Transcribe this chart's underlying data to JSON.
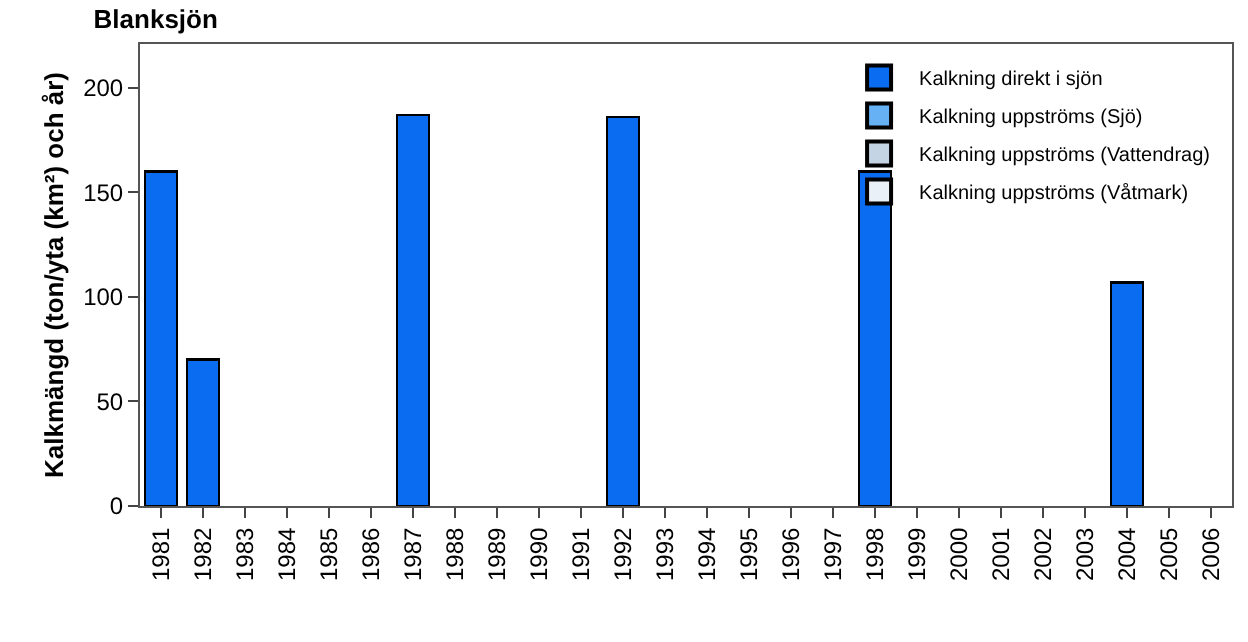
{
  "chart_data": {
    "type": "bar",
    "title": "Blanksjön",
    "ylabel": "Kalkmängd (ton/yta (km²) och år)",
    "categories": [
      "1981",
      "1982",
      "1983",
      "1984",
      "1985",
      "1986",
      "1987",
      "1988",
      "1989",
      "1990",
      "1991",
      "1992",
      "1993",
      "1994",
      "1995",
      "1996",
      "1997",
      "1998",
      "1999",
      "2000",
      "2001",
      "2002",
      "2003",
      "2004",
      "2005",
      "2006"
    ],
    "series": [
      {
        "name": "Kalkning direkt i sjön",
        "color": "#0a6cf0",
        "values": [
          160,
          70,
          0,
          0,
          0,
          0,
          187,
          0,
          0,
          0,
          0,
          186,
          0,
          0,
          0,
          0,
          0,
          160,
          0,
          0,
          0,
          0,
          0,
          107,
          0,
          0
        ]
      },
      {
        "name": "Kalkning uppströms (Sjö)",
        "color": "#66b0f4",
        "values": [
          0,
          0,
          0,
          0,
          0,
          0,
          0,
          0,
          0,
          0,
          0,
          0,
          0,
          0,
          0,
          0,
          0,
          0,
          0,
          0,
          0,
          0,
          0,
          0,
          0,
          0
        ]
      },
      {
        "name": "Kalkning uppströms (Vattendrag)",
        "color": "#c4d4e4",
        "values": [
          0,
          0,
          0,
          0,
          0,
          0,
          0,
          0,
          0,
          0,
          0,
          0,
          0,
          0,
          0,
          0,
          0,
          0,
          0,
          0,
          0,
          0,
          0,
          0,
          0,
          0
        ]
      },
      {
        "name": "Kalkning uppströms (Våtmark)",
        "color": "#eaf0f8",
        "values": [
          0,
          0,
          0,
          0,
          0,
          0,
          0,
          0,
          0,
          0,
          0,
          0,
          0,
          0,
          0,
          0,
          0,
          0,
          0,
          0,
          0,
          0,
          0,
          0,
          0,
          0
        ]
      }
    ],
    "stacked": true,
    "ylim": [
      0,
      221
    ],
    "yticks": [
      0,
      50,
      100,
      150,
      200
    ],
    "legend": "top right"
  }
}
